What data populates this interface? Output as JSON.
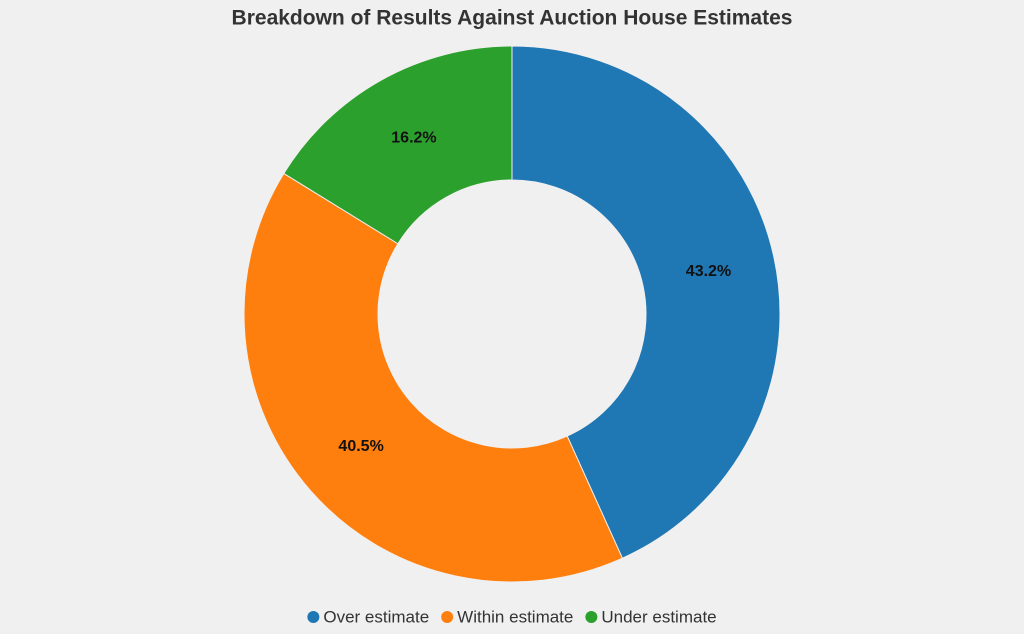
{
  "chart_data": {
    "type": "donut",
    "title": "Breakdown of Results Against Auction House Estimates",
    "categories": [
      "Over estimate",
      "Within estimate",
      "Under estimate"
    ],
    "values": [
      43.2,
      40.5,
      16.2
    ],
    "value_labels": [
      "43.2%",
      "40.5%",
      "16.2%"
    ],
    "colors": [
      "#1f77b4",
      "#ff7f0e",
      "#2ca02c"
    ],
    "legend": "bottom"
  }
}
